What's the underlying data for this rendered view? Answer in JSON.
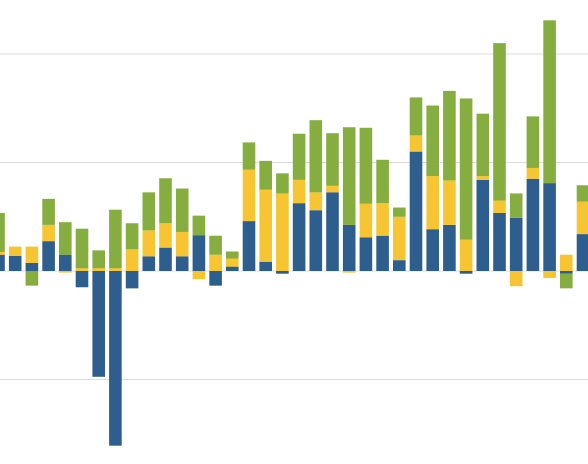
{
  "chart_data": {
    "type": "bar",
    "stacked": true,
    "title": "",
    "xlabel": "",
    "ylabel": "",
    "ylim": [
      -4,
      5
    ],
    "gridlines": [
      -2,
      0,
      2,
      4
    ],
    "grid": true,
    "colors": [
      "#2e5e8e",
      "#f6c531",
      "#86ad3f"
    ],
    "series": [
      {
        "values": [
          0.3,
          0.28,
          0.15,
          0.55,
          0.3,
          -0.3,
          -1.95,
          -3.22,
          -0.32,
          0.27,
          0.43,
          0.27,
          0.66,
          -0.27,
          0.08,
          0.92,
          0.17,
          -0.05,
          1.25,
          1.12,
          1.45,
          0.85,
          0.62,
          0.65,
          0.2,
          2.2,
          0.77,
          0.85,
          -0.05,
          1.68,
          1.07,
          0.98,
          1.7,
          1.62,
          -0.05,
          0.68
        ]
      },
      {
        "values": [
          0.05,
          0.17,
          0.3,
          0.3,
          -0.03,
          0.05,
          0.05,
          0.05,
          0.4,
          0.48,
          0.45,
          0.45,
          -0.15,
          0.3,
          0.15,
          0.95,
          1.33,
          1.43,
          0.43,
          0.33,
          0.12,
          -0.03,
          0.62,
          0.6,
          0.8,
          0.3,
          0.98,
          0.82,
          0.58,
          0.07,
          0.23,
          -0.28,
          0.2,
          -0.13,
          0.3,
          0.6
        ]
      },
      {
        "values": [
          0.72,
          0.0,
          -0.27,
          0.48,
          0.6,
          0.73,
          0.33,
          1.08,
          0.48,
          0.7,
          0.83,
          0.8,
          0.36,
          0.35,
          0.13,
          0.5,
          0.53,
          0.37,
          0.85,
          1.33,
          0.97,
          1.8,
          1.4,
          0.8,
          0.17,
          0.7,
          1.3,
          1.65,
          2.6,
          1.15,
          2.9,
          0.45,
          0.95,
          3.0,
          -0.27,
          0.3
        ]
      }
    ]
  }
}
